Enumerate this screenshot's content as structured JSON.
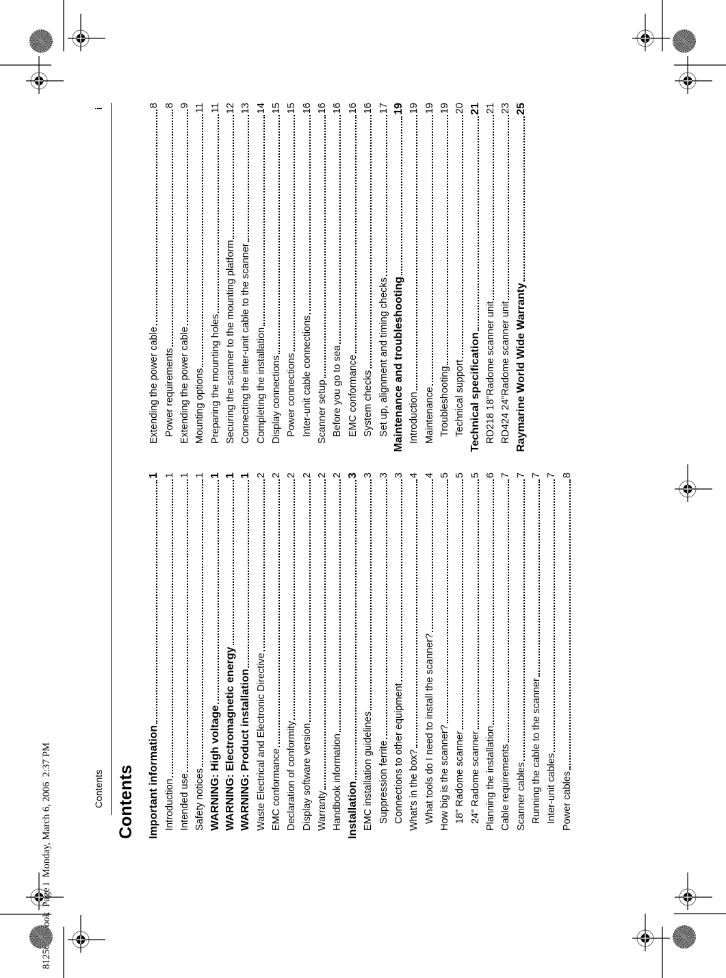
{
  "header": {
    "section": "Contents",
    "page_number": "i"
  },
  "title": "Contents",
  "book_info": "81256_3.book  Page i  Monday, March 6, 2006  2:37 PM",
  "toc_left": [
    {
      "label": "Important information",
      "page": "1",
      "level": 0
    },
    {
      "label": "Introduction",
      "page": "1",
      "level": 1
    },
    {
      "label": "Intended use",
      "page": "1",
      "level": 1
    },
    {
      "label": "Safety notices",
      "page": "1",
      "level": 1
    },
    {
      "label": "WARNING: High voltage",
      "page": "1",
      "level": 1,
      "bold": true
    },
    {
      "label": "WARNING: Electromagnetic energy",
      "page": "1",
      "level": 1,
      "bold": true
    },
    {
      "label": "WARNING: Product installation",
      "page": "1",
      "level": 1,
      "bold": true
    },
    {
      "label": "Waste Electrical and Electronic Directive",
      "page": "2",
      "level": 1
    },
    {
      "label": "EMC conformance",
      "page": "2",
      "level": 1
    },
    {
      "label": "Declaration of conformity",
      "page": "2",
      "level": 1
    },
    {
      "label": "Display software version",
      "page": "2",
      "level": 1
    },
    {
      "label": "Warranty",
      "page": "2",
      "level": 1
    },
    {
      "label": "Handbook information",
      "page": "2",
      "level": 1
    },
    {
      "label": "Installation",
      "page": "3",
      "level": 0
    },
    {
      "label": "EMC installation guidelines",
      "page": "3",
      "level": 1
    },
    {
      "label": "Suppression ferrite",
      "page": "3",
      "level": 2
    },
    {
      "label": "Connections to other equipment",
      "page": "3",
      "level": 2
    },
    {
      "label": "What's in the box?",
      "page": "4",
      "level": 1
    },
    {
      "label": "What tools do I need to install the scanner?",
      "page": "4",
      "level": 2
    },
    {
      "label": "How big is the scanner?",
      "page": "5",
      "level": 1
    },
    {
      "label": "18\" Radome scanner",
      "page": "5",
      "level": 2
    },
    {
      "label": "24\" Radome scanner",
      "page": "5",
      "level": 2
    },
    {
      "label": "Planning the installation",
      "page": "6",
      "level": 1
    },
    {
      "label": "Cable requirements",
      "page": "7",
      "level": 1
    },
    {
      "label": "Scanner cables",
      "page": "7",
      "level": 1
    },
    {
      "label": "Running the cable to the scanner",
      "page": "7",
      "level": 2
    },
    {
      "label": "Inter-unit cables",
      "page": "7",
      "level": 2
    },
    {
      "label": "Power cables",
      "page": "8",
      "level": 1
    }
  ],
  "toc_right": [
    {
      "label": "Extending the power cable",
      "page": "8",
      "level": 1
    },
    {
      "label": "Power requirements",
      "page": "8",
      "level": 2
    },
    {
      "label": "Extending the power cable",
      "page": "9",
      "level": 1
    },
    {
      "label": "Mounting options",
      "page": "11",
      "level": 1
    },
    {
      "label": "Preparing the mounting holes",
      "page": "11",
      "level": 1
    },
    {
      "label": "Securing the scanner to the mounting platform",
      "page": "12",
      "level": 1
    },
    {
      "label": "Connecting the inter-unit cable to the scanner",
      "page": "13",
      "level": 1
    },
    {
      "label": "Completing the installation",
      "page": "14",
      "level": 1
    },
    {
      "label": "Display connections",
      "page": "15",
      "level": 1
    },
    {
      "label": "Power connections",
      "page": "15",
      "level": 2
    },
    {
      "label": "Inter-unit cable connections",
      "page": "16",
      "level": 2
    },
    {
      "label": "Scanner setup",
      "page": "16",
      "level": 1
    },
    {
      "label": "Before you go to sea",
      "page": "16",
      "level": 2
    },
    {
      "label": "EMC conformance",
      "page": "16",
      "level": 2
    },
    {
      "label": "System checks",
      "page": "16",
      "level": 2
    },
    {
      "label": "Set up, alignment and timing checks",
      "page": "17",
      "level": 2
    },
    {
      "label": "Maintenance and troubleshooting",
      "page": "19",
      "level": 0
    },
    {
      "label": "Introduction",
      "page": "19",
      "level": 1
    },
    {
      "label": "Maintenance",
      "page": "19",
      "level": 1
    },
    {
      "label": "Troubleshooting",
      "page": "19",
      "level": 2
    },
    {
      "label": "Technical support",
      "page": "20",
      "level": 2
    },
    {
      "label": "Technical specification",
      "page": "21",
      "level": 0
    },
    {
      "label": "RD218 18\"Radome scanner unit",
      "page": "21",
      "level": 1
    },
    {
      "label": "RD424 24\"Radome scanner unit",
      "page": "23",
      "level": 1
    },
    {
      "label": "Raymarine World Wide Warranty",
      "page": "25",
      "level": 0
    }
  ]
}
